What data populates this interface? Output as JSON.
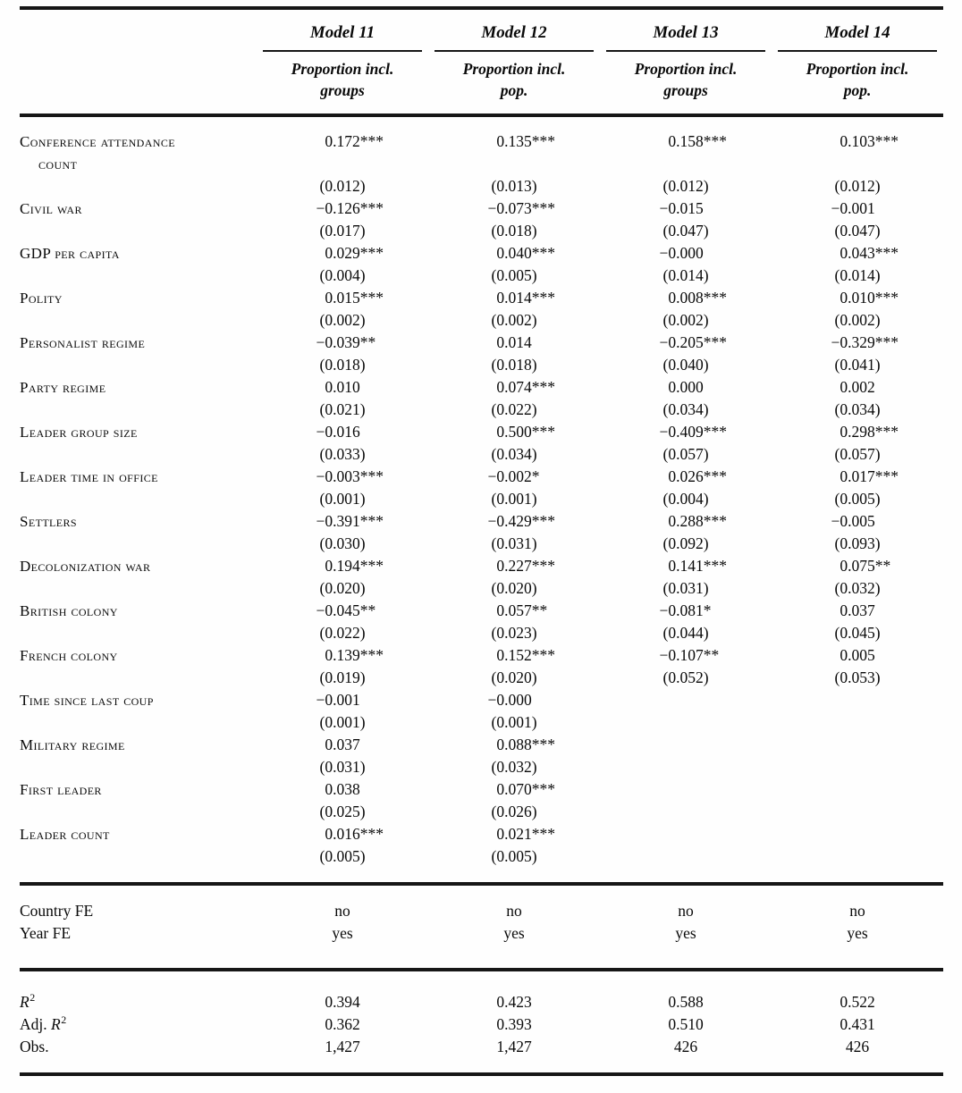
{
  "colors": {
    "background": "#fefefe",
    "text": "#0a0a0a",
    "rule": "#161616"
  },
  "table": {
    "models": [
      {
        "name": "Model 11",
        "dv_line1": "Proportion incl.",
        "dv_line2": "groups"
      },
      {
        "name": "Model 12",
        "dv_line1": "Proportion incl.",
        "dv_line2": "pop."
      },
      {
        "name": "Model 13",
        "dv_line1": "Proportion incl.",
        "dv_line2": "groups"
      },
      {
        "name": "Model 14",
        "dv_line1": "Proportion incl.",
        "dv_line2": "pop."
      }
    ],
    "rows": [
      {
        "label": "Conference attendance count",
        "coefs": [
          "0.172***",
          "0.135***",
          "0.158***",
          "0.103***"
        ],
        "ses": [
          "(0.012)",
          "(0.013)",
          "(0.012)",
          "(0.012)"
        ]
      },
      {
        "label": "Civil war",
        "coefs": [
          "−0.126***",
          "−0.073***",
          "−0.015",
          "−0.001"
        ],
        "ses": [
          "(0.017)",
          "(0.018)",
          "(0.047)",
          "(0.047)"
        ]
      },
      {
        "label": "GDP per capita",
        "coefs": [
          "0.029***",
          "0.040***",
          "−0.000",
          "0.043***"
        ],
        "ses": [
          "(0.004)",
          "(0.005)",
          "(0.014)",
          "(0.014)"
        ]
      },
      {
        "label": "Polity",
        "coefs": [
          "0.015***",
          "0.014***",
          "0.008***",
          "0.010***"
        ],
        "ses": [
          "(0.002)",
          "(0.002)",
          "(0.002)",
          "(0.002)"
        ]
      },
      {
        "label": "Personalist regime",
        "coefs": [
          "−0.039**",
          "0.014",
          "−0.205***",
          "−0.329***"
        ],
        "ses": [
          "(0.018)",
          "(0.018)",
          "(0.040)",
          "(0.041)"
        ]
      },
      {
        "label": "Party regime",
        "coefs": [
          "0.010",
          "0.074***",
          "0.000",
          "0.002"
        ],
        "ses": [
          "(0.021)",
          "(0.022)",
          "(0.034)",
          "(0.034)"
        ]
      },
      {
        "label": "Leader group size",
        "coefs": [
          "−0.016",
          "0.500***",
          "−0.409***",
          "0.298***"
        ],
        "ses": [
          "(0.033)",
          "(0.034)",
          "(0.057)",
          "(0.057)"
        ]
      },
      {
        "label": "Leader time in office",
        "coefs": [
          "−0.003***",
          "−0.002*",
          "0.026***",
          "0.017***"
        ],
        "ses": [
          "(0.001)",
          "(0.001)",
          "(0.004)",
          "(0.005)"
        ]
      },
      {
        "label": "Settlers",
        "coefs": [
          "−0.391***",
          "−0.429***",
          "0.288***",
          "−0.005"
        ],
        "ses": [
          "(0.030)",
          "(0.031)",
          "(0.092)",
          "(0.093)"
        ]
      },
      {
        "label": "Decolonization war",
        "coefs": [
          "0.194***",
          "0.227***",
          "0.141***",
          "0.075**"
        ],
        "ses": [
          "(0.020)",
          "(0.020)",
          "(0.031)",
          "(0.032)"
        ]
      },
      {
        "label": "British colony",
        "coefs": [
          "−0.045**",
          "0.057**",
          "−0.081*",
          "0.037"
        ],
        "ses": [
          "(0.022)",
          "(0.023)",
          "(0.044)",
          "(0.045)"
        ]
      },
      {
        "label": "French colony",
        "coefs": [
          "0.139***",
          "0.152***",
          "−0.107**",
          "0.005"
        ],
        "ses": [
          "(0.019)",
          "(0.020)",
          "(0.052)",
          "(0.053)"
        ]
      },
      {
        "label": "Time since last coup",
        "coefs": [
          "−0.001",
          "−0.000",
          "",
          ""
        ],
        "ses": [
          "(0.001)",
          "(0.001)",
          "",
          ""
        ]
      },
      {
        "label": "Military regime",
        "coefs": [
          "0.037",
          "0.088***",
          "",
          ""
        ],
        "ses": [
          "(0.031)",
          "(0.032)",
          "",
          ""
        ]
      },
      {
        "label": "First leader",
        "coefs": [
          "0.038",
          "0.070***",
          "",
          ""
        ],
        "ses": [
          "(0.025)",
          "(0.026)",
          "",
          ""
        ]
      },
      {
        "label": "Leader count",
        "coefs": [
          "0.016***",
          "0.021***",
          "",
          ""
        ],
        "ses": [
          "(0.005)",
          "(0.005)",
          "",
          ""
        ]
      }
    ],
    "fixed_effects": [
      {
        "label": "Country FE",
        "values": [
          "no",
          "no",
          "no",
          "no"
        ]
      },
      {
        "label": "Year FE",
        "values": [
          "yes",
          "yes",
          "yes",
          "yes"
        ]
      }
    ],
    "stats": [
      {
        "prefix": "",
        "italic": "R",
        "sup": "2",
        "values": [
          "0.394",
          "0.423",
          "0.588",
          "0.522"
        ]
      },
      {
        "prefix": "Adj. ",
        "italic": "R",
        "sup": "2",
        "values": [
          "0.362",
          "0.393",
          "0.510",
          "0.431"
        ]
      },
      {
        "prefix": "Obs.",
        "italic": "",
        "sup": "",
        "values": [
          "1,427",
          "1,427",
          "426",
          "426"
        ]
      }
    ]
  }
}
